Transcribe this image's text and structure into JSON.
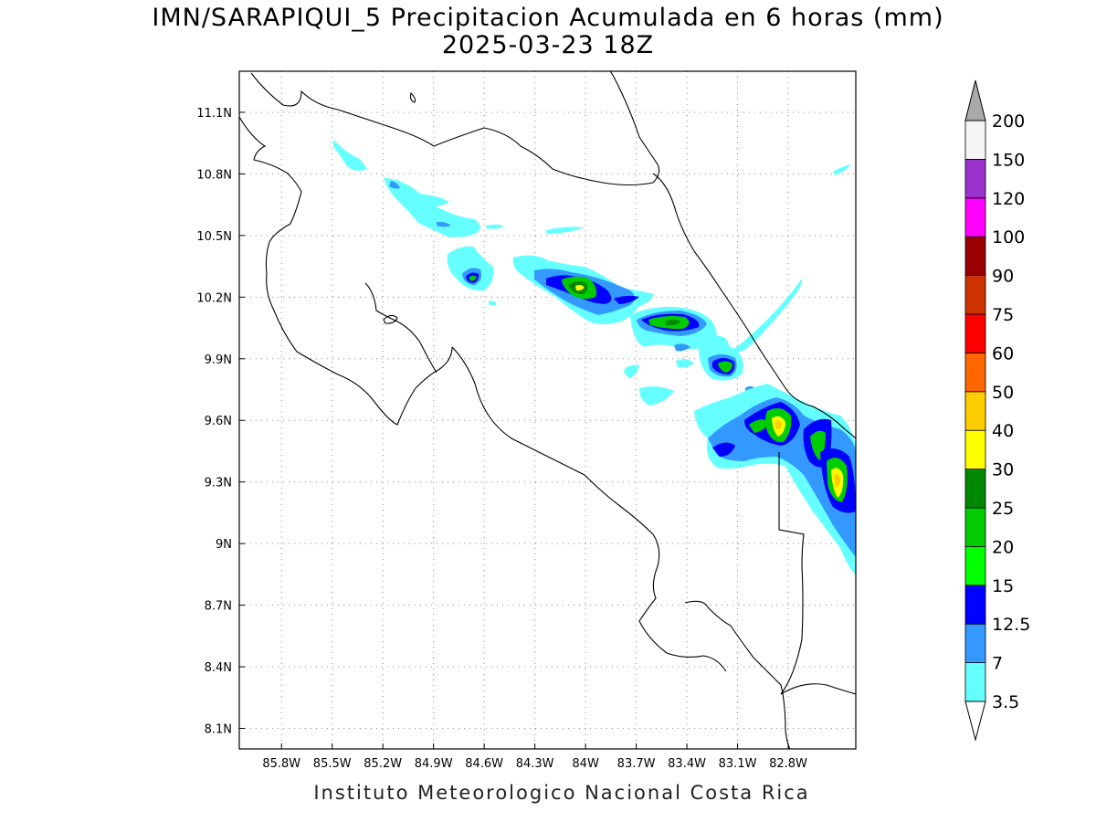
{
  "title": {
    "line1": "IMN/SARAPIQUI_5 Precipitacion Acumulada en 6 horas (mm)",
    "line2": "2025-03-23 18Z"
  },
  "footer": "Instituto Meteorologico Nacional Costa Rica",
  "map": {
    "lon_range": [
      -86.05,
      -82.4
    ],
    "lat_range": [
      8.0,
      11.3
    ],
    "lon_ticks": [
      {
        "value": -85.8,
        "label": "85.8W"
      },
      {
        "value": -85.5,
        "label": "85.5W"
      },
      {
        "value": -85.2,
        "label": "85.2W"
      },
      {
        "value": -84.9,
        "label": "84.9W"
      },
      {
        "value": -84.6,
        "label": "84.6W"
      },
      {
        "value": -84.3,
        "label": "84.3W"
      },
      {
        "value": -84.0,
        "label": "84W"
      },
      {
        "value": -83.7,
        "label": "83.7W"
      },
      {
        "value": -83.4,
        "label": "83.4W"
      },
      {
        "value": -83.1,
        "label": "83.1W"
      },
      {
        "value": -82.8,
        "label": "82.8W"
      }
    ],
    "lat_ticks": [
      {
        "value": 11.1,
        "label": "11.1N"
      },
      {
        "value": 10.8,
        "label": "10.8N"
      },
      {
        "value": 10.5,
        "label": "10.5N"
      },
      {
        "value": 10.2,
        "label": "10.2N"
      },
      {
        "value": 9.9,
        "label": "9.9N"
      },
      {
        "value": 9.6,
        "label": "9.6N"
      },
      {
        "value": 9.3,
        "label": "9.3N"
      },
      {
        "value": 9.0,
        "label": "9N"
      },
      {
        "value": 8.7,
        "label": "8.7N"
      },
      {
        "value": 8.4,
        "label": "8.4N"
      },
      {
        "value": 8.1,
        "label": "8.1N"
      }
    ],
    "grid": "dotted"
  },
  "colorbar": {
    "bins": [
      {
        "label": "3.5",
        "color": "#66ffff"
      },
      {
        "label": "7",
        "color": "#3399ff"
      },
      {
        "label": "12.5",
        "color": "#0000ff"
      },
      {
        "label": "15",
        "color": "#00ff00"
      },
      {
        "label": "20",
        "color": "#00cc00"
      },
      {
        "label": "25",
        "color": "#008800"
      },
      {
        "label": "30",
        "color": "#ffff00"
      },
      {
        "label": "40",
        "color": "#ffcc00"
      },
      {
        "label": "50",
        "color": "#ff6600"
      },
      {
        "label": "60",
        "color": "#ff0000"
      },
      {
        "label": "75",
        "color": "#cc3300"
      },
      {
        "label": "90",
        "color": "#990000"
      },
      {
        "label": "100",
        "color": "#ff00ff"
      },
      {
        "label": "120",
        "color": "#9933cc"
      },
      {
        "label": "150",
        "color": "#f4f4f4"
      },
      {
        "label": "200",
        "color": "#aaaaaa"
      }
    ]
  }
}
